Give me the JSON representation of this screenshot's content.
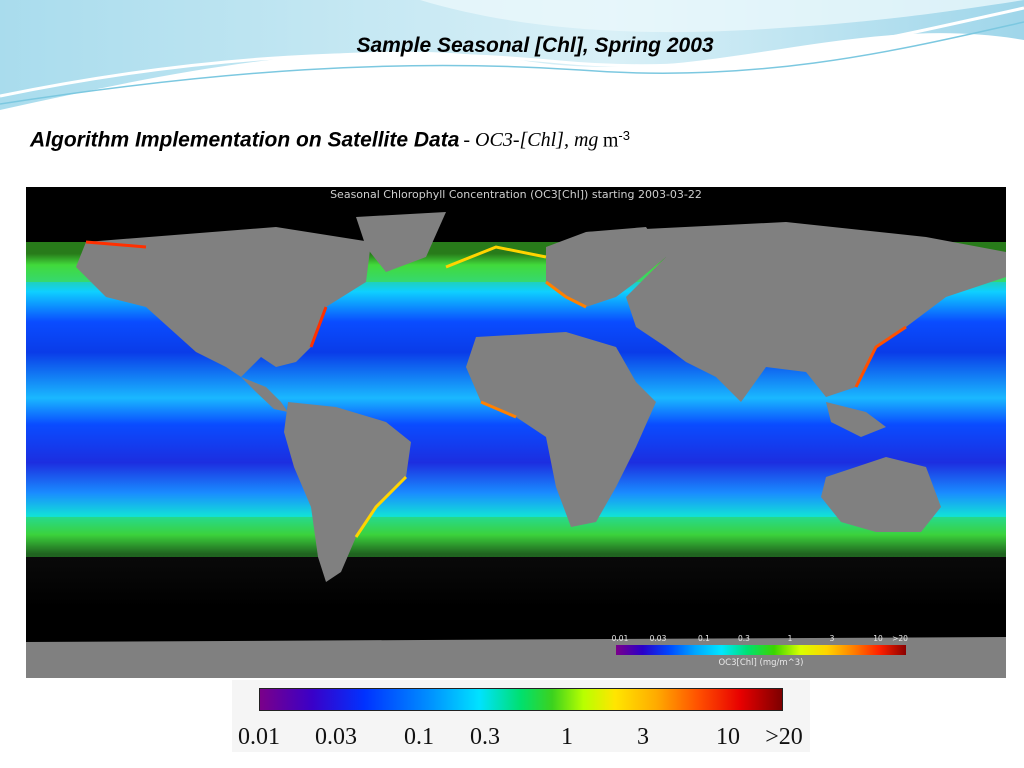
{
  "slide": {
    "title": "Sample Seasonal [Chl], Spring 2003",
    "subtitle_main": "Algorithm Implementation on Satellite Data",
    "subtitle_unit": "- OC3-[Chl], mg",
    "subtitle_unit_m": "m",
    "subtitle_unit_exp": "-3"
  },
  "map": {
    "heading": "Seasonal Chlorophyll Concentration (OC3[Chl]) starting 2003-03-22",
    "land_color": "#808080",
    "background_color": "#000000",
    "colorbar_ticks": [
      "0.01",
      "0.03",
      "0.1",
      "0.3",
      "1",
      "3",
      "10",
      ">20"
    ],
    "colorbar_label": "OC3[Chl] (mg/m^3)"
  },
  "colorbar": {
    "ticks": [
      "0.01",
      "0.03",
      "0.1",
      "0.3",
      "1",
      "3",
      "10",
      ">20"
    ]
  },
  "colors": {
    "header_wave": "#bfe6f2",
    "header_wave_dark": "#7cc8e0"
  }
}
